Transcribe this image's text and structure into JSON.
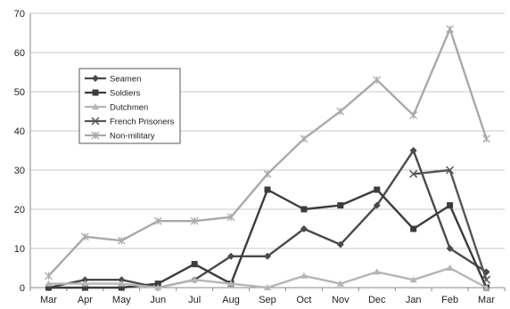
{
  "chart_data": {
    "type": "line",
    "title": "",
    "xlabel": "",
    "ylabel": "",
    "categories": [
      "Mar",
      "Apr",
      "May",
      "Jun",
      "Jul",
      "Aug",
      "Sep",
      "Oct",
      "Nov",
      "Dec",
      "Jan",
      "Feb",
      "Mar"
    ],
    "ylim": [
      0,
      70
    ],
    "yticks": [
      0,
      10,
      20,
      30,
      40,
      50,
      60,
      70
    ],
    "grid": true,
    "legend_position": "upper-left",
    "series": [
      {
        "name": "Seamen",
        "marker": "diamond",
        "color": "#4a4a4a",
        "values": [
          0,
          2,
          2,
          0,
          2,
          8,
          8,
          15,
          11,
          21,
          35,
          10,
          4
        ]
      },
      {
        "name": "Soldiers",
        "marker": "square",
        "color": "#3c3c3c",
        "values": [
          0,
          0,
          0,
          1,
          6,
          1,
          25,
          20,
          21,
          25,
          15,
          21,
          0
        ]
      },
      {
        "name": "Dutchmen",
        "marker": "triangle",
        "color": "#b5b5b5",
        "values": [
          1,
          1,
          1,
          0,
          2,
          1,
          0,
          3,
          1,
          4,
          2,
          5,
          0
        ]
      },
      {
        "name": "French Prisoners",
        "marker": "x",
        "color": "#555555",
        "values": [
          null,
          null,
          null,
          null,
          null,
          null,
          null,
          null,
          null,
          null,
          29,
          30,
          2
        ]
      },
      {
        "name": "Non-military",
        "marker": "star",
        "color": "#a9a9a9",
        "values": [
          3,
          13,
          12,
          17,
          17,
          18,
          29,
          38,
          45,
          53,
          44,
          66,
          38
        ]
      }
    ]
  }
}
